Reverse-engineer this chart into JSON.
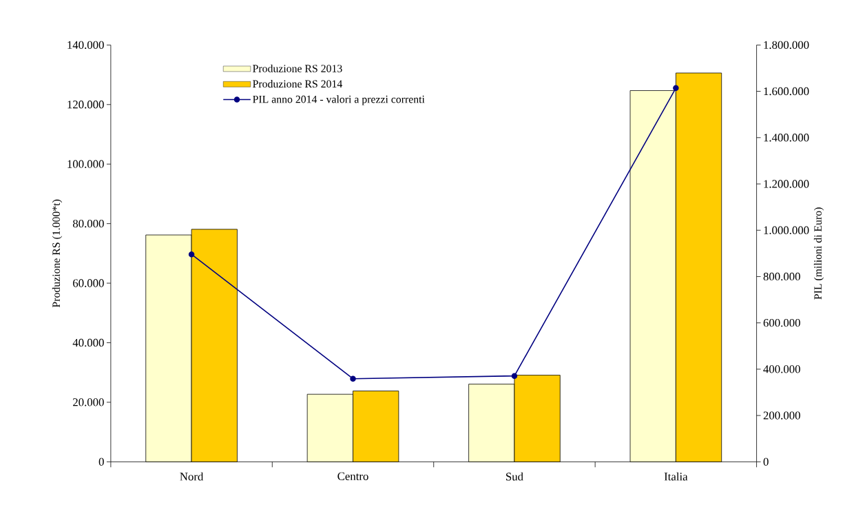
{
  "chart_data": {
    "type": "bar",
    "ylabel": "Produzione RS (1.000*t)",
    "y2label": "PIL (milioni di Euro)",
    "categories": [
      "Nord",
      "Centro",
      "Sud",
      "Italia"
    ],
    "series": [
      {
        "name": "Produzione RS 2013",
        "color": "#ffffcc",
        "values": [
          76200,
          22700,
          26100,
          124700
        ]
      },
      {
        "name": "Produzione RS 2014",
        "color": "#ffcc00",
        "values": [
          78100,
          23800,
          29100,
          130600
        ]
      },
      {
        "name": "PIL anno 2014 - valori a prezzi correnti",
        "type": "line",
        "axis": "y2",
        "color": "#000080",
        "marker": "circle",
        "line_style": "solid",
        "values": [
          896000,
          359000,
          371000,
          1614000
        ]
      }
    ],
    "ylim": [
      0,
      140000
    ],
    "yticks": [
      0,
      {
        "value": 20000,
        "label": "20.000"
      },
      {
        "value": 40000,
        "label": "40.000"
      },
      {
        "value": 60000,
        "label": "60.000"
      },
      {
        "value": 80000,
        "label": "80.000"
      },
      {
        "value": 100000,
        "label": "100.000"
      },
      {
        "value": 120000,
        "label": "120.000"
      },
      {
        "value": 140000,
        "label": "140.000"
      }
    ],
    "y2lim": [
      0,
      1800000
    ],
    "y2ticks": [
      0,
      {
        "value": 200000,
        "label": "200.000"
      },
      {
        "value": 400000,
        "label": "400.000"
      },
      {
        "value": 600000,
        "label": "600.000"
      },
      {
        "value": 800000,
        "label": "800.000"
      },
      {
        "value": 1000000,
        "label": "1.000.000"
      },
      {
        "value": 1200000,
        "label": "1.200.000"
      },
      {
        "value": 1400000,
        "label": "1.400.000"
      },
      {
        "value": 1600000,
        "label": "1.600.000"
      },
      {
        "value": 1800000,
        "label": "1.800.000"
      }
    ],
    "grid": false,
    "legend": "top left"
  }
}
